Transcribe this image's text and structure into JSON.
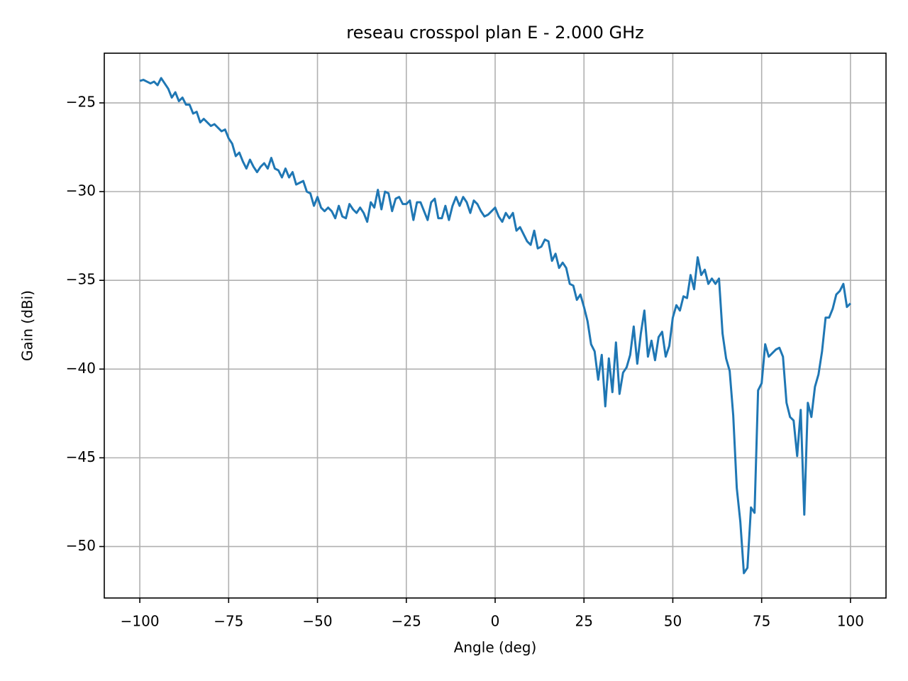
{
  "chart_data": {
    "type": "line",
    "title": "reseau crosspol plan E - 2.000 GHz",
    "x_label": "Angle (deg)",
    "y_label": "Gain (dBi)",
    "x": [
      -100,
      -99,
      -98,
      -97,
      -96,
      -95,
      -94,
      -93,
      -92,
      -91,
      -90,
      -89,
      -88,
      -87,
      -86,
      -85,
      -84,
      -83,
      -82,
      -81,
      -80,
      -79,
      -78,
      -77,
      -76,
      -75,
      -74,
      -73,
      -72,
      -71,
      -70,
      -69,
      -68,
      -67,
      -66,
      -65,
      -64,
      -63,
      -62,
      -61,
      -60,
      -59,
      -58,
      -57,
      -56,
      -55,
      -54,
      -53,
      -52,
      -51,
      -50,
      -49,
      -48,
      -47,
      -46,
      -45,
      -44,
      -43,
      -42,
      -41,
      -40,
      -39,
      -38,
      -37,
      -36,
      -35,
      -34,
      -33,
      -32,
      -31,
      -30,
      -29,
      -28,
      -27,
      -26,
      -25,
      -24,
      -23,
      -22,
      -21,
      -20,
      -19,
      -18,
      -17,
      -16,
      -15,
      -14,
      -13,
      -12,
      -11,
      -10,
      -9,
      -8,
      -7,
      -6,
      -5,
      -4,
      -3,
      -2,
      -1,
      0,
      1,
      2,
      3,
      4,
      5,
      6,
      7,
      8,
      9,
      10,
      11,
      12,
      13,
      14,
      15,
      16,
      17,
      18,
      19,
      20,
      21,
      22,
      23,
      24,
      25,
      26,
      27,
      28,
      29,
      30,
      31,
      32,
      33,
      34,
      35,
      36,
      37,
      38,
      39,
      40,
      41,
      42,
      43,
      44,
      45,
      46,
      47,
      48,
      49,
      50,
      51,
      52,
      53,
      54,
      55,
      56,
      57,
      58,
      59,
      60,
      61,
      62,
      63,
      64,
      65,
      66,
      67,
      68,
      69,
      70,
      71,
      72,
      73,
      74,
      75,
      76,
      77,
      78,
      79,
      80,
      81,
      82,
      83,
      84,
      85,
      86,
      87,
      88,
      89,
      90,
      91,
      92,
      93,
      94,
      95,
      96,
      97,
      98,
      99,
      100
    ],
    "series": [
      {
        "color": "#1f77b4",
        "values": [
          -23.76,
          -23.7,
          -23.8,
          -23.9,
          -23.8,
          -24.0,
          -23.6,
          -23.9,
          -24.2,
          -24.7,
          -24.4,
          -24.9,
          -24.7,
          -25.1,
          -25.1,
          -25.6,
          -25.5,
          -26.1,
          -25.9,
          -26.1,
          -26.3,
          -26.2,
          -26.4,
          -26.6,
          -26.5,
          -27.0,
          -27.3,
          -28.0,
          -27.8,
          -28.3,
          -28.7,
          -28.2,
          -28.6,
          -28.9,
          -28.6,
          -28.4,
          -28.7,
          -28.1,
          -28.7,
          -28.8,
          -29.2,
          -28.7,
          -29.2,
          -28.9,
          -29.6,
          -29.5,
          -29.4,
          -30.0,
          -30.1,
          -30.8,
          -30.3,
          -30.9,
          -31.1,
          -30.9,
          -31.1,
          -31.5,
          -30.8,
          -31.4,
          -31.5,
          -30.7,
          -31.0,
          -31.2,
          -30.9,
          -31.2,
          -31.7,
          -30.6,
          -30.9,
          -29.9,
          -31.0,
          -30.0,
          -30.1,
          -31.1,
          -30.4,
          -30.3,
          -30.7,
          -30.7,
          -30.5,
          -31.6,
          -30.6,
          -30.6,
          -31.1,
          -31.6,
          -30.6,
          -30.4,
          -31.5,
          -31.5,
          -30.8,
          -31.6,
          -30.8,
          -30.3,
          -30.8,
          -30.3,
          -30.6,
          -31.2,
          -30.5,
          -30.7,
          -31.1,
          -31.4,
          -31.3,
          -31.1,
          -30.9,
          -31.4,
          -31.7,
          -31.2,
          -31.5,
          -31.2,
          -32.2,
          -32.0,
          -32.4,
          -32.8,
          -33.0,
          -32.2,
          -33.2,
          -33.1,
          -32.7,
          -32.8,
          -33.9,
          -33.5,
          -34.3,
          -34.0,
          -34.3,
          -35.2,
          -35.3,
          -36.1,
          -35.8,
          -36.5,
          -37.3,
          -38.6,
          -39.0,
          -40.6,
          -39.2,
          -42.1,
          -39.4,
          -41.3,
          -38.5,
          -41.4,
          -40.2,
          -39.9,
          -39.2,
          -37.6,
          -39.7,
          -38.0,
          -36.7,
          -39.3,
          -38.4,
          -39.5,
          -38.2,
          -37.9,
          -39.3,
          -38.7,
          -37.1,
          -36.4,
          -36.7,
          -35.9,
          -36.0,
          -34.7,
          -35.5,
          -33.7,
          -34.7,
          -34.4,
          -35.2,
          -34.9,
          -35.2,
          -34.9,
          -38.0,
          -39.4,
          -40.1,
          -42.6,
          -46.7,
          -48.6,
          -51.5,
          -51.2,
          -47.8,
          -48.1,
          -41.2,
          -40.8,
          -38.6,
          -39.3,
          -39.1,
          -38.9,
          -38.8,
          -39.3,
          -41.9,
          -42.7,
          -42.9,
          -44.9,
          -42.3,
          -48.2,
          -41.9,
          -42.7,
          -41.0,
          -40.3,
          -39.0,
          -37.1,
          -37.1,
          -36.6,
          -35.8,
          -35.6,
          -35.2,
          -36.5,
          -36.3
        ]
      }
    ],
    "xlim": [
      -110,
      110
    ],
    "xticks": [
      {
        "value": -100,
        "label": "−100"
      },
      {
        "value": -75,
        "label": "−75"
      },
      {
        "value": -50,
        "label": "−50"
      },
      {
        "value": -25,
        "label": "−25"
      },
      0,
      25,
      50,
      75,
      100
    ],
    "ylim": [
      -52.9,
      -22.2
    ],
    "yticks": [
      {
        "value": -50,
        "label": "−50"
      },
      {
        "value": -45,
        "label": "−45"
      },
      {
        "value": -40,
        "label": "−40"
      },
      {
        "value": -35,
        "label": "−35"
      },
      {
        "value": -30,
        "label": "−30"
      },
      {
        "value": -25,
        "label": "−25"
      }
    ],
    "grid": true
  }
}
